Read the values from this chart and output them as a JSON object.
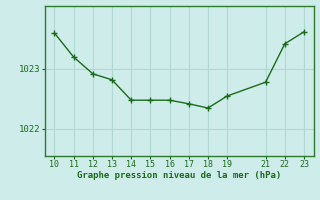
{
  "x": [
    10,
    11,
    12,
    13,
    14,
    15,
    16,
    17,
    18,
    19,
    21,
    22,
    23
  ],
  "y": [
    1023.6,
    1023.2,
    1022.92,
    1022.82,
    1022.48,
    1022.48,
    1022.48,
    1022.42,
    1022.35,
    1022.55,
    1022.78,
    1023.42,
    1023.62
  ],
  "xticks": [
    10,
    11,
    12,
    13,
    14,
    15,
    16,
    17,
    18,
    19,
    21,
    22,
    23
  ],
  "yticks": [
    1022,
    1023
  ],
  "ylim": [
    1021.55,
    1024.05
  ],
  "xlim": [
    9.5,
    23.5
  ],
  "line_color": "#1a6b1a",
  "marker": "+",
  "bg_color": "#ceecea",
  "grid_color": "#b2d8d4",
  "xlabel": "Graphe pression niveau de la mer (hPa)",
  "xlabel_color": "#1a6b1a",
  "tick_color": "#1a6b1a",
  "spine_color": "#2e7b2e"
}
